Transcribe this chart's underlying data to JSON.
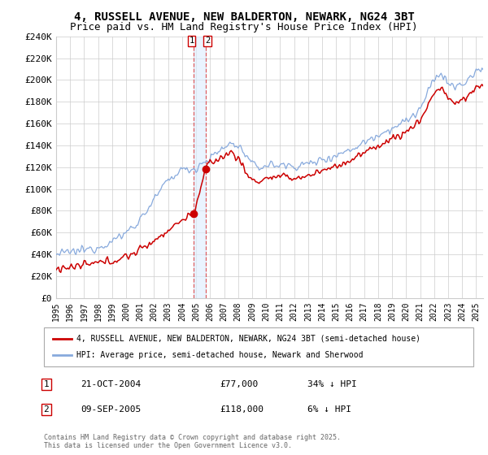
{
  "title": "4, RUSSELL AVENUE, NEW BALDERTON, NEWARK, NG24 3BT",
  "subtitle": "Price paid vs. HM Land Registry's House Price Index (HPI)",
  "title_fontsize": 10,
  "subtitle_fontsize": 9,
  "ylim": [
    0,
    240000
  ],
  "yticks": [
    0,
    20000,
    40000,
    60000,
    80000,
    100000,
    120000,
    140000,
    160000,
    180000,
    200000,
    220000,
    240000
  ],
  "ytick_labels": [
    "£0",
    "£20K",
    "£40K",
    "£60K",
    "£80K",
    "£100K",
    "£120K",
    "£140K",
    "£160K",
    "£180K",
    "£200K",
    "£220K",
    "£240K"
  ],
  "xlim_start": 1995.0,
  "xlim_end": 2025.5,
  "purchase1_x": 2004.81,
  "purchase1_y": 77000,
  "purchase2_x": 2005.69,
  "purchase2_y": 118000,
  "legend_property_label": "4, RUSSELL AVENUE, NEW BALDERTON, NEWARK, NG24 3BT (semi-detached house)",
  "legend_hpi_label": "HPI: Average price, semi-detached house, Newark and Sherwood",
  "annotation1_date": "21-OCT-2004",
  "annotation1_price": "£77,000",
  "annotation1_hpi": "34% ↓ HPI",
  "annotation2_date": "09-SEP-2005",
  "annotation2_price": "£118,000",
  "annotation2_hpi": "6% ↓ HPI",
  "footer": "Contains HM Land Registry data © Crown copyright and database right 2025.\nThis data is licensed under the Open Government Licence v3.0.",
  "property_line_color": "#cc0000",
  "hpi_line_color": "#88aadd",
  "vline_color": "#dd4444",
  "vshade_color": "#ddeeff",
  "background_color": "#ffffff",
  "grid_color": "#cccccc"
}
